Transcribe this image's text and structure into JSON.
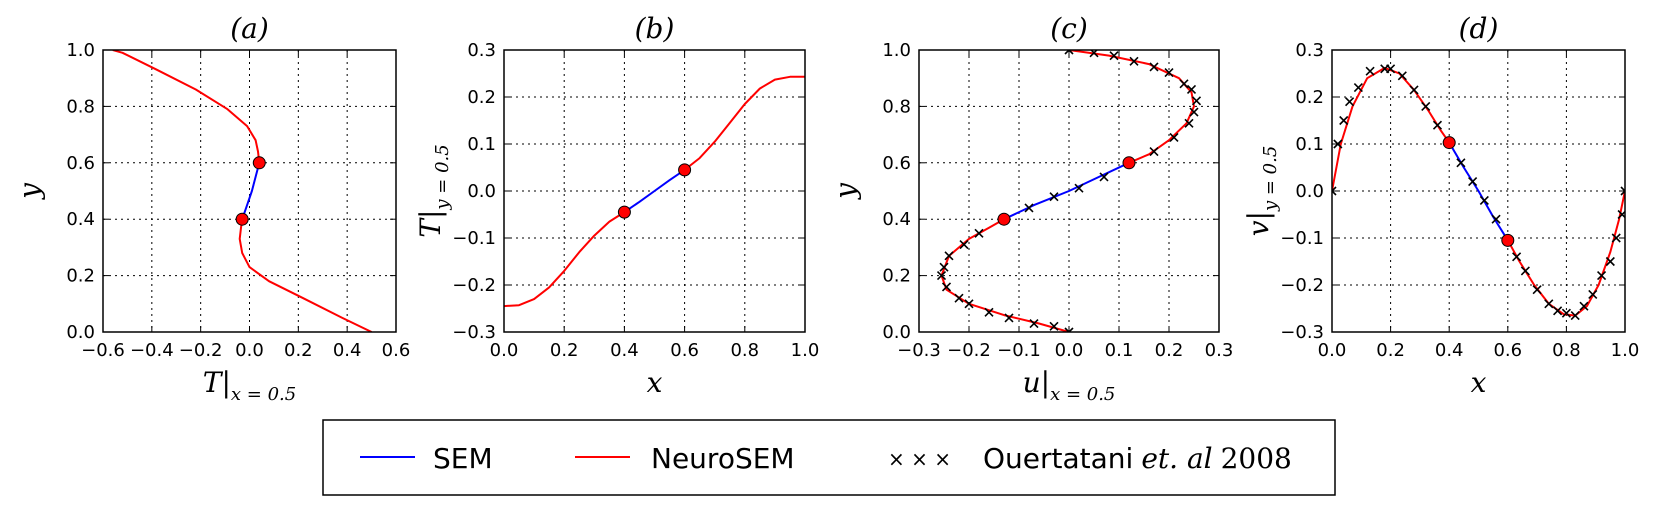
{
  "legend": {
    "sem_label": "SEM",
    "neurosem_label": "NeuroSEM",
    "ref_label_prefix": "Ouertatani",
    "ref_label_italic": "et. al",
    "ref_label_year": "2008",
    "ref_marker": "× × ×"
  },
  "colors": {
    "sem": "#0000ff",
    "neurosem": "#ff0000",
    "marker": "#000000",
    "point_fill": "#ff0000"
  },
  "chart_data": [
    {
      "id": "a",
      "type": "line",
      "title": "(a)",
      "xlabel_main": "T",
      "xlabel_sub": "x = 0.5",
      "ylabel_main": "y",
      "ylabel_sub": "",
      "xlim": [
        -0.6,
        0.6
      ],
      "ylim": [
        0.0,
        1.0
      ],
      "xticks": [
        -0.6,
        -0.4,
        -0.2,
        0.0,
        0.2,
        0.4,
        0.6
      ],
      "xtick_labels": [
        "−0.6",
        "−0.4",
        "−0.2",
        "0.0",
        "0.2",
        "0.4",
        "0.6"
      ],
      "yticks": [
        0.0,
        0.2,
        0.4,
        0.6,
        0.8,
        1.0
      ],
      "ytick_labels": [
        "0.0",
        "0.2",
        "0.4",
        "0.6",
        "0.8",
        "1.0"
      ],
      "grid": true,
      "series": [
        {
          "name": "NeuroSEM",
          "color": "#ff0000",
          "points": [
            [
              0.5,
              0.0
            ],
            [
              0.38,
              0.05
            ],
            [
              0.22,
              0.12
            ],
            [
              0.08,
              0.18
            ],
            [
              0.0,
              0.23
            ],
            [
              -0.03,
              0.28
            ],
            [
              -0.04,
              0.33
            ],
            [
              -0.035,
              0.37
            ],
            [
              -0.03,
              0.4
            ]
          ]
        },
        {
          "name": "NeuroSEM",
          "color": "#ff0000",
          "points": [
            [
              0.04,
              0.6
            ],
            [
              0.035,
              0.64
            ],
            [
              0.025,
              0.68
            ],
            [
              -0.01,
              0.73
            ],
            [
              -0.09,
              0.79
            ],
            [
              -0.22,
              0.86
            ],
            [
              -0.38,
              0.93
            ],
            [
              -0.52,
              0.99
            ],
            [
              -0.56,
              1.0
            ]
          ]
        },
        {
          "name": "SEM",
          "color": "#0000ff",
          "points": [
            [
              -0.03,
              0.4
            ],
            [
              -0.01,
              0.45
            ],
            [
              0.01,
              0.5
            ],
            [
              0.025,
              0.55
            ],
            [
              0.04,
              0.6
            ]
          ]
        }
      ],
      "points": [
        [
          -0.03,
          0.4
        ],
        [
          0.04,
          0.6
        ]
      ],
      "markers": []
    },
    {
      "id": "b",
      "type": "line",
      "title": "(b)",
      "xlabel_main": "x",
      "xlabel_sub": "",
      "ylabel_main": "T",
      "ylabel_sub": "y = 0.5",
      "xlim": [
        0.0,
        1.0
      ],
      "ylim": [
        -0.3,
        0.3
      ],
      "xticks": [
        0.0,
        0.2,
        0.4,
        0.6,
        0.8,
        1.0
      ],
      "xtick_labels": [
        "0.0",
        "0.2",
        "0.4",
        "0.6",
        "0.8",
        "1.0"
      ],
      "yticks": [
        -0.3,
        -0.2,
        -0.1,
        0.0,
        0.1,
        0.2,
        0.3
      ],
      "ytick_labels": [
        "−0.3",
        "−0.2",
        "−0.1",
        "0.0",
        "0.1",
        "0.2",
        "0.3"
      ],
      "grid": true,
      "series": [
        {
          "name": "NeuroSEM",
          "color": "#ff0000",
          "points": [
            [
              0.0,
              -0.245
            ],
            [
              0.05,
              -0.243
            ],
            [
              0.1,
              -0.23
            ],
            [
              0.15,
              -0.205
            ],
            [
              0.2,
              -0.17
            ],
            [
              0.25,
              -0.13
            ],
            [
              0.3,
              -0.095
            ],
            [
              0.35,
              -0.065
            ],
            [
              0.4,
              -0.045
            ]
          ]
        },
        {
          "name": "NeuroSEM",
          "color": "#ff0000",
          "points": [
            [
              0.6,
              0.045
            ],
            [
              0.65,
              0.07
            ],
            [
              0.7,
              0.105
            ],
            [
              0.75,
              0.145
            ],
            [
              0.8,
              0.185
            ],
            [
              0.85,
              0.218
            ],
            [
              0.9,
              0.237
            ],
            [
              0.95,
              0.243
            ],
            [
              1.0,
              0.243
            ]
          ]
        },
        {
          "name": "SEM",
          "color": "#0000ff",
          "points": [
            [
              0.4,
              -0.045
            ],
            [
              0.45,
              -0.023
            ],
            [
              0.5,
              0.0
            ],
            [
              0.55,
              0.023
            ],
            [
              0.6,
              0.045
            ]
          ]
        }
      ],
      "points": [
        [
          0.4,
          -0.045
        ],
        [
          0.6,
          0.045
        ]
      ],
      "markers": []
    },
    {
      "id": "c",
      "type": "line",
      "title": "(c)",
      "xlabel_main": "u",
      "xlabel_sub": "x = 0.5",
      "ylabel_main": "y",
      "ylabel_sub": "",
      "xlim": [
        -0.3,
        0.3
      ],
      "ylim": [
        0.0,
        1.0
      ],
      "xticks": [
        -0.3,
        -0.2,
        -0.1,
        0.0,
        0.1,
        0.2,
        0.3
      ],
      "xtick_labels": [
        "−0.3",
        "−0.2",
        "−0.1",
        "0.0",
        "0.1",
        "0.2",
        "0.3"
      ],
      "yticks": [
        0.0,
        0.2,
        0.4,
        0.6,
        0.8,
        1.0
      ],
      "ytick_labels": [
        "0.0",
        "0.2",
        "0.4",
        "0.6",
        "0.8",
        "1.0"
      ],
      "grid": true,
      "series": [
        {
          "name": "NeuroSEM",
          "color": "#ff0000",
          "points": [
            [
              0.0,
              0.0
            ],
            [
              -0.06,
              0.03
            ],
            [
              -0.13,
              0.06
            ],
            [
              -0.2,
              0.1
            ],
            [
              -0.245,
              0.15
            ],
            [
              -0.255,
              0.2
            ],
            [
              -0.24,
              0.27
            ],
            [
              -0.2,
              0.33
            ],
            [
              -0.16,
              0.37
            ],
            [
              -0.13,
              0.4
            ]
          ]
        },
        {
          "name": "NeuroSEM",
          "color": "#ff0000",
          "points": [
            [
              0.12,
              0.6
            ],
            [
              0.16,
              0.63
            ],
            [
              0.2,
              0.68
            ],
            [
              0.235,
              0.74
            ],
            [
              0.25,
              0.8
            ],
            [
              0.245,
              0.85
            ],
            [
              0.22,
              0.9
            ],
            [
              0.16,
              0.95
            ],
            [
              0.08,
              0.98
            ],
            [
              0.0,
              1.0
            ]
          ]
        },
        {
          "name": "SEM",
          "color": "#0000ff",
          "points": [
            [
              -0.13,
              0.4
            ],
            [
              -0.07,
              0.45
            ],
            [
              0.0,
              0.5
            ],
            [
              0.06,
              0.55
            ],
            [
              0.12,
              0.6
            ]
          ]
        }
      ],
      "points": [
        [
          -0.13,
          0.4
        ],
        [
          0.12,
          0.6
        ]
      ],
      "markers": [
        [
          0.0,
          0.0
        ],
        [
          -0.03,
          0.02
        ],
        [
          -0.07,
          0.03
        ],
        [
          -0.12,
          0.05
        ],
        [
          -0.16,
          0.07
        ],
        [
          -0.2,
          0.1
        ],
        [
          -0.22,
          0.12
        ],
        [
          -0.245,
          0.16
        ],
        [
          -0.255,
          0.2
        ],
        [
          -0.25,
          0.23
        ],
        [
          -0.24,
          0.27
        ],
        [
          -0.21,
          0.31
        ],
        [
          -0.18,
          0.35
        ],
        [
          -0.13,
          0.4
        ],
        [
          -0.08,
          0.44
        ],
        [
          -0.03,
          0.48
        ],
        [
          0.02,
          0.51
        ],
        [
          0.07,
          0.55
        ],
        [
          0.12,
          0.6
        ],
        [
          0.17,
          0.64
        ],
        [
          0.21,
          0.69
        ],
        [
          0.24,
          0.74
        ],
        [
          0.25,
          0.78
        ],
        [
          0.255,
          0.82
        ],
        [
          0.245,
          0.86
        ],
        [
          0.23,
          0.88
        ],
        [
          0.2,
          0.92
        ],
        [
          0.17,
          0.94
        ],
        [
          0.13,
          0.96
        ],
        [
          0.09,
          0.98
        ],
        [
          0.05,
          0.99
        ],
        [
          0.0,
          1.0
        ]
      ]
    },
    {
      "id": "d",
      "type": "line",
      "title": "(d)",
      "xlabel_main": "x",
      "xlabel_sub": "",
      "ylabel_main": "v",
      "ylabel_sub": "y = 0.5",
      "xlim": [
        0.0,
        1.0
      ],
      "ylim": [
        -0.3,
        0.3
      ],
      "xticks": [
        0.0,
        0.2,
        0.4,
        0.6,
        0.8,
        1.0
      ],
      "xtick_labels": [
        "0.0",
        "0.2",
        "0.4",
        "0.6",
        "0.8",
        "1.0"
      ],
      "yticks": [
        -0.3,
        -0.2,
        -0.1,
        0.0,
        0.1,
        0.2,
        0.3
      ],
      "ytick_labels": [
        "−0.3",
        "−0.2",
        "−0.1",
        "0.0",
        "0.1",
        "0.2",
        "0.3"
      ],
      "grid": true,
      "series": [
        {
          "name": "NeuroSEM",
          "color": "#ff0000",
          "points": [
            [
              0.0,
              0.0
            ],
            [
              0.03,
              0.1
            ],
            [
              0.07,
              0.18
            ],
            [
              0.12,
              0.24
            ],
            [
              0.18,
              0.262
            ],
            [
              0.23,
              0.25
            ],
            [
              0.28,
              0.215
            ],
            [
              0.33,
              0.17
            ],
            [
              0.37,
              0.13
            ],
            [
              0.4,
              0.103
            ]
          ]
        },
        {
          "name": "NeuroSEM",
          "color": "#ff0000",
          "points": [
            [
              0.6,
              -0.105
            ],
            [
              0.64,
              -0.15
            ],
            [
              0.69,
              -0.2
            ],
            [
              0.74,
              -0.24
            ],
            [
              0.79,
              -0.262
            ],
            [
              0.83,
              -0.265
            ],
            [
              0.87,
              -0.245
            ],
            [
              0.91,
              -0.2
            ],
            [
              0.95,
              -0.13
            ],
            [
              0.98,
              -0.06
            ],
            [
              1.0,
              0.0
            ]
          ]
        },
        {
          "name": "SEM",
          "color": "#0000ff",
          "points": [
            [
              0.4,
              0.103
            ],
            [
              0.45,
              0.05
            ],
            [
              0.5,
              0.0
            ],
            [
              0.55,
              -0.055
            ],
            [
              0.6,
              -0.105
            ]
          ]
        }
      ],
      "points": [
        [
          0.4,
          0.103
        ],
        [
          0.6,
          -0.105
        ]
      ],
      "markers": [
        [
          0.0,
          0.0
        ],
        [
          0.02,
          0.1
        ],
        [
          0.04,
          0.15
        ],
        [
          0.06,
          0.19
        ],
        [
          0.09,
          0.22
        ],
        [
          0.13,
          0.255
        ],
        [
          0.18,
          0.26
        ],
        [
          0.2,
          0.26
        ],
        [
          0.24,
          0.245
        ],
        [
          0.28,
          0.215
        ],
        [
          0.32,
          0.18
        ],
        [
          0.36,
          0.14
        ],
        [
          0.4,
          0.103
        ],
        [
          0.44,
          0.06
        ],
        [
          0.48,
          0.02
        ],
        [
          0.52,
          -0.02
        ],
        [
          0.56,
          -0.06
        ],
        [
          0.6,
          -0.105
        ],
        [
          0.63,
          -0.14
        ],
        [
          0.66,
          -0.17
        ],
        [
          0.7,
          -0.21
        ],
        [
          0.74,
          -0.24
        ],
        [
          0.77,
          -0.255
        ],
        [
          0.8,
          -0.26
        ],
        [
          0.83,
          -0.265
        ],
        [
          0.86,
          -0.245
        ],
        [
          0.89,
          -0.22
        ],
        [
          0.92,
          -0.18
        ],
        [
          0.95,
          -0.15
        ],
        [
          0.97,
          -0.1
        ],
        [
          0.99,
          -0.05
        ],
        [
          1.0,
          0.0
        ]
      ]
    }
  ]
}
